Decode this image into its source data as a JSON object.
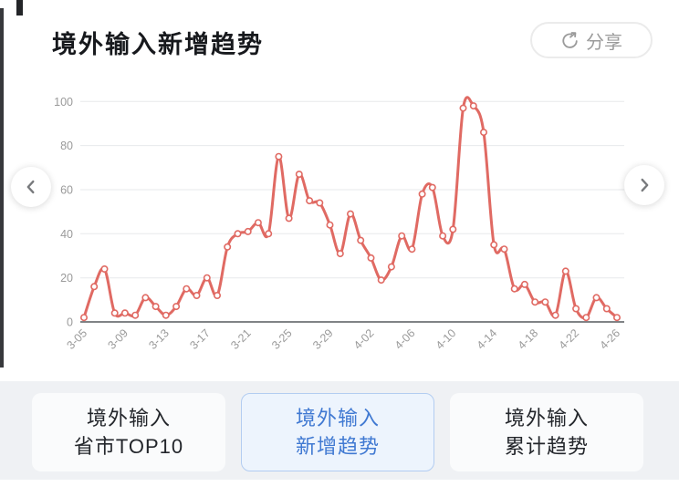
{
  "header": {
    "title": "境外输入新增趋势",
    "share_label": "分享"
  },
  "icons": {
    "share": "circular-arrow-share",
    "prev": "chevron-left",
    "next": "chevron-right"
  },
  "chart_data": {
    "type": "line",
    "title": "境外输入新增趋势",
    "x": [
      "3-05",
      "3-06",
      "3-07",
      "3-08",
      "3-09",
      "3-10",
      "3-11",
      "3-12",
      "3-13",
      "3-14",
      "3-15",
      "3-16",
      "3-17",
      "3-18",
      "3-19",
      "3-20",
      "3-21",
      "3-22",
      "3-23",
      "3-24",
      "3-25",
      "3-26",
      "3-27",
      "3-28",
      "3-29",
      "3-30",
      "3-31",
      "4-01",
      "4-02",
      "4-03",
      "4-04",
      "4-05",
      "4-06",
      "4-07",
      "4-08",
      "4-09",
      "4-10",
      "4-11",
      "4-12",
      "4-13",
      "4-14",
      "4-15",
      "4-16",
      "4-17",
      "4-18",
      "4-19",
      "4-20",
      "4-21",
      "4-22",
      "4-23",
      "4-24",
      "4-25",
      "4-26"
    ],
    "values": [
      2,
      16,
      24,
      4,
      4,
      3,
      11,
      7,
      3,
      7,
      15,
      12,
      20,
      12,
      34,
      40,
      41,
      45,
      40,
      75,
      47,
      67,
      55,
      54,
      44,
      31,
      49,
      37,
      29,
      19,
      25,
      39,
      33,
      58,
      61,
      39,
      42,
      97,
      98,
      86,
      35,
      33,
      15,
      17,
      9,
      9,
      3,
      23,
      6,
      2,
      11,
      6,
      2
    ],
    "x_tick_labels": [
      "3-05",
      "3-09",
      "3-13",
      "3-17",
      "3-21",
      "3-25",
      "3-29",
      "4-02",
      "4-06",
      "4-10",
      "4-14",
      "4-18",
      "4-22",
      "4-26"
    ],
    "x_tick_every": 4,
    "y_ticks": [
      0,
      20,
      40,
      60,
      80,
      100
    ],
    "ylim": [
      0,
      100
    ],
    "grid": true,
    "smooth": true,
    "marker": "hollow-circle",
    "colors": {
      "line": "#e06a63",
      "marker_fill": "#ffffff",
      "gridline": "#e7e9eb",
      "axis_line": "#565a5f",
      "tick_label": "#9a9a9a"
    },
    "legend": []
  },
  "tabs": [
    {
      "line1": "境外输入",
      "line2": "省市TOP10",
      "active": false
    },
    {
      "line1": "境外输入",
      "line2": "新增趋势",
      "active": true
    },
    {
      "line1": "境外输入",
      "line2": "累计趋势",
      "active": false
    }
  ]
}
